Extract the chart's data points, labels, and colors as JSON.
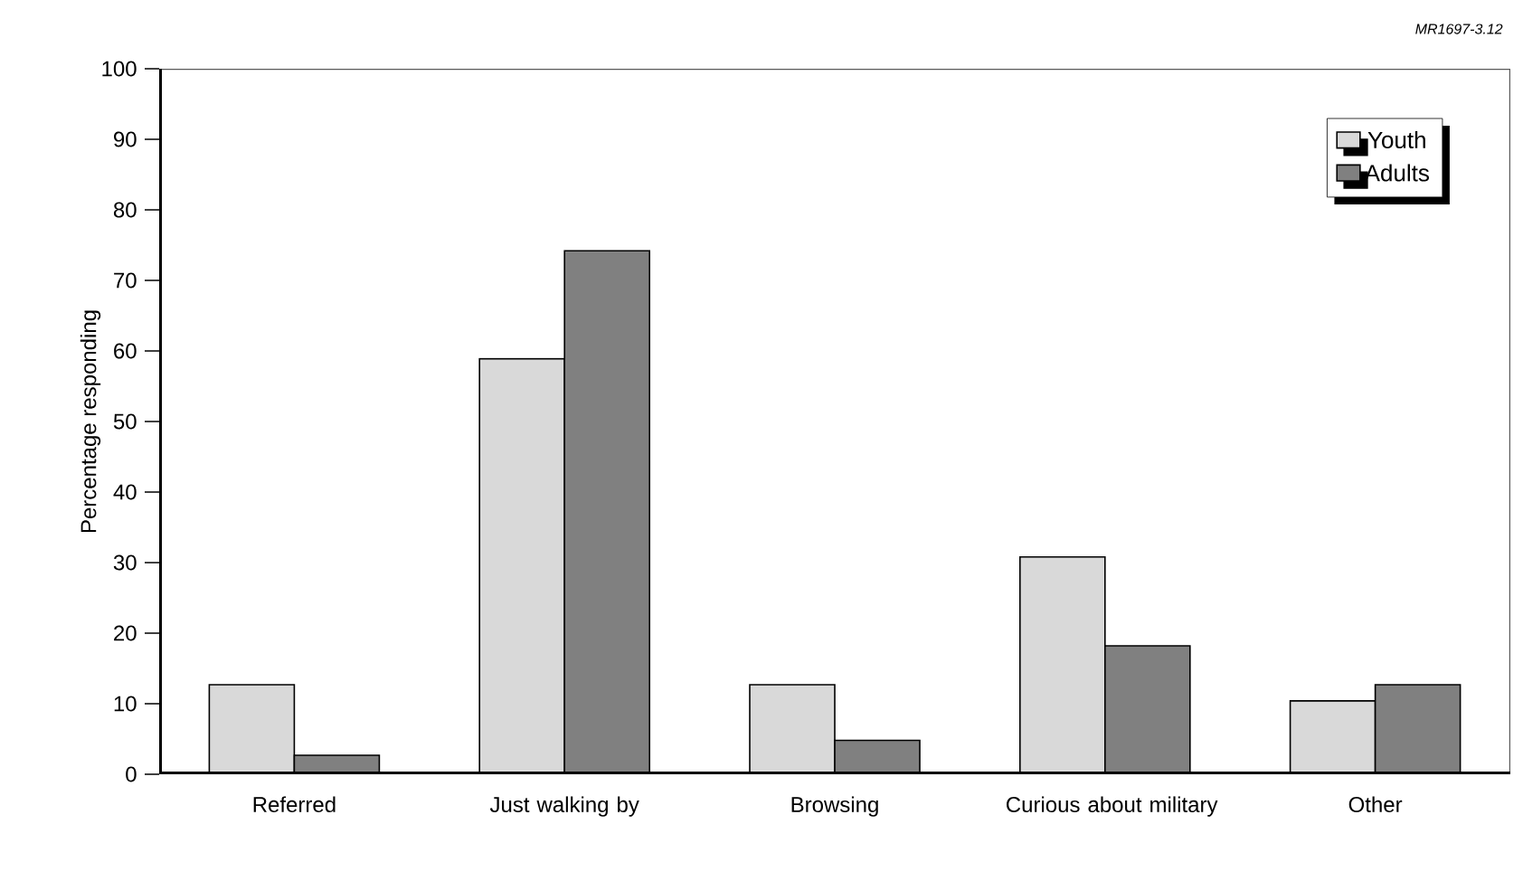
{
  "chart_data": {
    "type": "bar",
    "ylabel": "Percentage responding",
    "annotations": [
      "MR1697-3.12"
    ],
    "categories": [
      "Referred",
      "Just walking by",
      "Browsing",
      "Curious about military",
      "Other"
    ],
    "series": [
      {
        "name": "Youth",
        "color": "#d9d9d9",
        "values": [
          12.7,
          58.9,
          12.7,
          30.8,
          10.4
        ]
      },
      {
        "name": "Adults",
        "color": "#808080",
        "values": [
          2.7,
          74.2,
          4.8,
          18.2,
          12.7
        ]
      }
    ],
    "ylim": [
      0,
      100
    ],
    "yticks": [
      0,
      10,
      20,
      30,
      40,
      50,
      60,
      70,
      80,
      90,
      100
    ],
    "legend": "top right",
    "grid": false
  }
}
